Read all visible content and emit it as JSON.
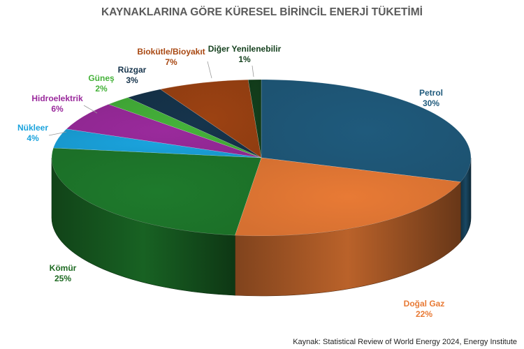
{
  "chart_data": {
    "type": "pie",
    "title": "KAYNAKLARINA GÖRE KÜRESEL BİRİNCİL ENERJİ TÜKETİMİ",
    "source": "Kaynak: Statistical Review of World Energy 2024, Energy Institute",
    "slices": [
      {
        "label": "Petrol",
        "value": 30,
        "value_label": "30%",
        "color": "#1f5a7c",
        "label_color": "#1f5a7c"
      },
      {
        "label": "Doğal Gaz",
        "value": 22,
        "value_label": "22%",
        "color": "#e87a35",
        "label_color": "#e87a35"
      },
      {
        "label": "Kömür",
        "value": 25,
        "value_label": "25%",
        "color": "#1e7a2c",
        "label_color": "#1e6a22"
      },
      {
        "label": "Nükleer",
        "value": 4,
        "value_label": "4%",
        "color": "#1aa3dd",
        "label_color": "#1aa3dd"
      },
      {
        "label": "Hidroelektrik",
        "value": 6,
        "value_label": "6%",
        "color": "#9a2a9c",
        "label_color": "#9a2a9c"
      },
      {
        "label": "Güneş",
        "value": 2,
        "value_label": "2%",
        "color": "#45b23a",
        "label_color": "#45b23a"
      },
      {
        "label": "Rüzgar",
        "value": 3,
        "value_label": "3%",
        "color": "#16344c",
        "label_color": "#16344c"
      },
      {
        "label": "Biokütle/Bioyakıt",
        "value": 7,
        "value_label": "7%",
        "color": "#9c4212",
        "label_color": "#a84812"
      },
      {
        "label": "Diğer Yenilenebilir",
        "value": 1,
        "value_label": "1%",
        "color": "#133f1c",
        "label_color": "#133f1c"
      }
    ]
  }
}
